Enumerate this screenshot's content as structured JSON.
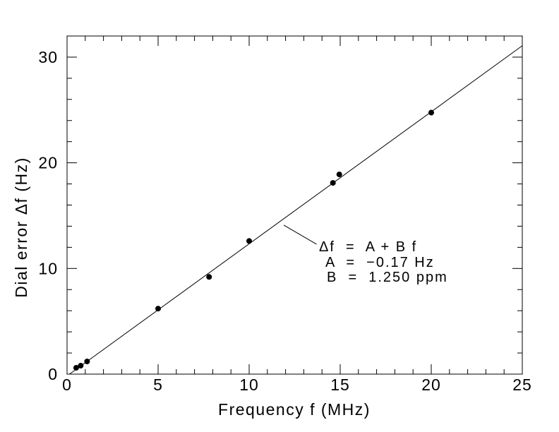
{
  "figure": {
    "background": "#ffffff",
    "ink": "#000000"
  },
  "chart_data": {
    "type": "scatter",
    "title": "",
    "xlabel": "Frequency f (MHz)",
    "ylabel": "Dial error Δf (Hz)",
    "xlim": [
      0,
      25
    ],
    "ylim": [
      0,
      32
    ],
    "x_major_ticks": [
      0,
      5,
      10,
      15,
      20,
      25
    ],
    "x_minor_step": 1,
    "y_major_ticks": [
      0,
      10,
      20,
      30
    ],
    "y_minor_step": 2,
    "grid": false,
    "legend": "none",
    "marker": {
      "shape": "filled-circle",
      "color": "#000000"
    },
    "points": [
      [
        0.5,
        0.6
      ],
      [
        0.75,
        0.8
      ],
      [
        1.1,
        1.2
      ],
      [
        5.0,
        6.2
      ],
      [
        7.8,
        9.2
      ],
      [
        10.0,
        12.6
      ],
      [
        14.6,
        18.1
      ],
      [
        14.95,
        18.9
      ],
      [
        20.0,
        24.75
      ]
    ],
    "fit": {
      "A_Hz": -0.17,
      "B_ppm": 1.25
    },
    "annotation": {
      "lines": [
        "Δf  =  A + B f",
        "A  =  −0.17 Hz",
        "B  =  1.250 ppm"
      ],
      "leader_from": [
        11.9,
        14.1
      ],
      "leader_to": [
        13.7,
        12.3
      ]
    }
  }
}
